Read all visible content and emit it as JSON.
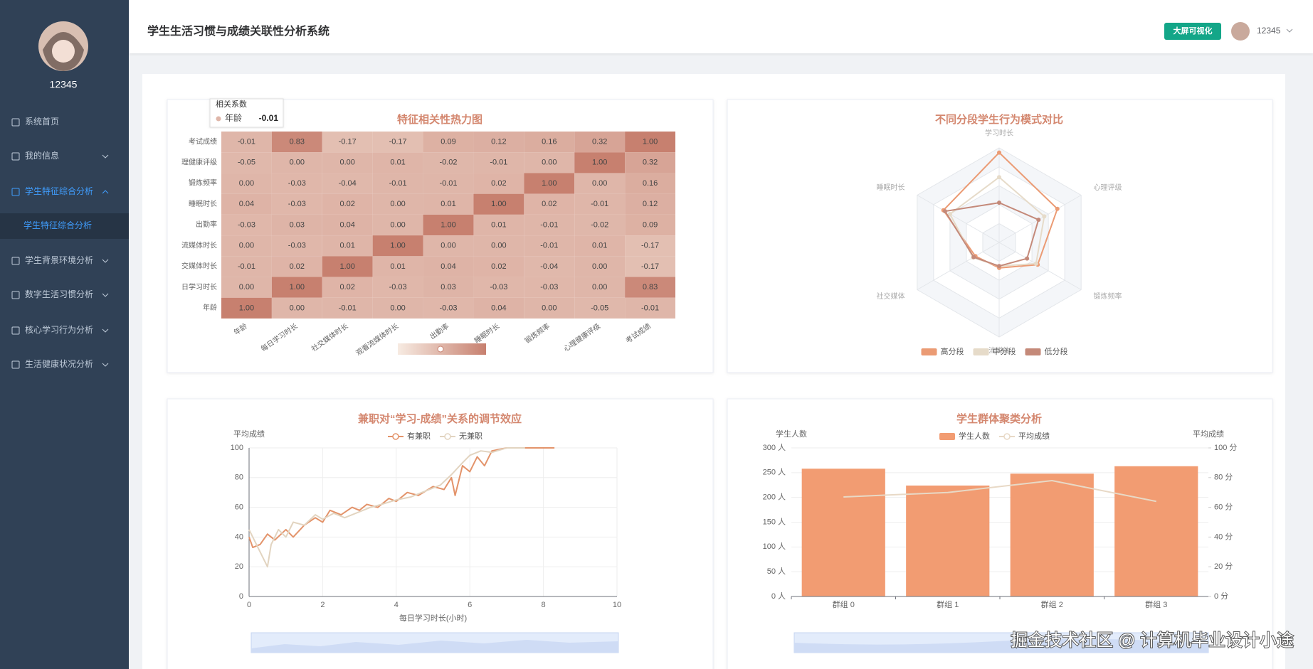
{
  "sidebar": {
    "username": "12345",
    "menu": [
      "系统首页",
      "我的信息",
      "学生特征综合分析",
      "学生背景环境分析",
      "数字生活习惯分析",
      "核心学习行为分析",
      "生活健康状况分析"
    ],
    "submenu": "学生特征综合分析"
  },
  "header": {
    "title": "学生生活习惯与成绩关联性分析系统",
    "button": "大屏可视化",
    "username": "12345"
  },
  "chart_data": [
    {
      "type": "heatmap",
      "title": "特征相关性热力图",
      "x_categories": [
        "年龄",
        "每日学习时长",
        "社交媒体时长",
        "观看流媒体时长",
        "出勤率",
        "睡眠时长",
        "锻炼频率",
        "心理健康评级",
        "考试成绩"
      ],
      "y_categories": [
        "考试成绩",
        "理健康评级",
        "锻炼频率",
        "睡眠时长",
        "出勤率",
        "流媒体时长",
        "交媒体时长",
        "日学习时长",
        "年龄"
      ],
      "values": [
        [
          -0.01,
          0.83,
          -0.17,
          -0.17,
          0.09,
          0.12,
          0.16,
          0.32,
          1
        ],
        [
          -0.05,
          0,
          0,
          0.01,
          -0.02,
          -0.01,
          0,
          1,
          0.32
        ],
        [
          0,
          -0.03,
          -0.04,
          -0.01,
          -0.01,
          0.02,
          1,
          0,
          0.16
        ],
        [
          0.04,
          -0.03,
          0.02,
          0,
          0.01,
          1,
          0.02,
          -0.01,
          0.12
        ],
        [
          -0.03,
          0.03,
          0.04,
          0,
          1,
          0.01,
          -0.01,
          -0.02,
          0.09
        ],
        [
          0,
          -0.03,
          0.01,
          1,
          0,
          0,
          -0.01,
          0.01,
          -0.17
        ],
        [
          -0.01,
          0.02,
          1,
          0.01,
          0.04,
          0.02,
          -0.04,
          0,
          -0.17
        ],
        [
          0,
          1,
          0.02,
          -0.03,
          0.03,
          -0.03,
          -0.03,
          0,
          0.83
        ],
        [
          1,
          0,
          -0.01,
          0,
          -0.03,
          0.04,
          0,
          -0.05,
          -0.01
        ]
      ],
      "value_labels": [
        [
          "-0.01",
          "0.83",
          "-0.17",
          "-0.17",
          "0.09",
          "0.12",
          "0.16",
          "0.32",
          "1.00"
        ],
        [
          "-0.05",
          "0.00",
          "0.00",
          "0.01",
          "-0.02",
          "-0.01",
          "0.00",
          "1.00",
          "0.32"
        ],
        [
          "0.00",
          "-0.03",
          "-0.04",
          "-0.01",
          "-0.01",
          "0.02",
          "1.00",
          "0.00",
          "0.16"
        ],
        [
          "0.04",
          "-0.03",
          "0.02",
          "0.00",
          "0.01",
          "1.00",
          "0.02",
          "-0.01",
          "0.12"
        ],
        [
          "-0.03",
          "0.03",
          "0.04",
          "0.00",
          "1.00",
          "0.01",
          "-0.01",
          "-0.02",
          "0.09"
        ],
        [
          "0.00",
          "-0.03",
          "0.01",
          "1.00",
          "0.00",
          "0.00",
          "-0.01",
          "0.01",
          "-0.17"
        ],
        [
          "-0.01",
          "0.02",
          "1.00",
          "0.01",
          "0.04",
          "0.02",
          "-0.04",
          "0.00",
          "-0.17"
        ],
        [
          "0.00",
          "1.00",
          "0.02",
          "-0.03",
          "0.03",
          "-0.03",
          "-0.03",
          "0.00",
          "0.83"
        ],
        [
          "1.00",
          "0.00",
          "-0.01",
          "0.00",
          "-0.03",
          "0.04",
          "0.00",
          "-0.05",
          "-0.01"
        ]
      ],
      "visual_range": [
        -1,
        1
      ],
      "colors": [
        "#f7ebe2",
        "#c7806f"
      ],
      "tooltip": {
        "title": "相关系数",
        "name": "年龄",
        "value": -0.01
      }
    },
    {
      "type": "radar",
      "title": "不同分段学生行为模式对比",
      "indicators": [
        "学习时长",
        "心理评级",
        "锻炼频率",
        "流媒体",
        "社交媒体",
        "睡眠时长"
      ],
      "rlim": [
        0,
        100
      ],
      "legend": "bottom",
      "series": [
        {
          "name": "高分段",
          "color": "#eb9b74",
          "values": [
            95,
            71,
            47,
            27,
            29,
            68
          ]
        },
        {
          "name": "中分段",
          "color": "#e6dbc9",
          "values": [
            69,
            55,
            45,
            25,
            32,
            60
          ]
        },
        {
          "name": "低分段",
          "color": "#c48979",
          "values": [
            42,
            48,
            34,
            25,
            31,
            66
          ]
        }
      ]
    },
    {
      "type": "line",
      "title": "兼职对“学习-成绩”关系的调节效应",
      "y_label": "平均成绩",
      "x_label": "每日学习时长(小时)",
      "xlim": [
        0,
        10
      ],
      "xticks": [
        0,
        2,
        4,
        6,
        8,
        10
      ],
      "ylim": [
        0,
        100
      ],
      "yticks": [
        0,
        20,
        40,
        60,
        80,
        100
      ],
      "grid": true,
      "legend": "top",
      "series": [
        {
          "name": "有兼职",
          "color": "#e3936a",
          "x": [
            0,
            0.1,
            0.3,
            0.5,
            0.7,
            1,
            1.2,
            1.5,
            1.8,
            2,
            2.2,
            2.5,
            2.8,
            3,
            3.2,
            3.5,
            3.8,
            4,
            4.3,
            4.6,
            5,
            5.3,
            5.5,
            5.6,
            5.8,
            6,
            6.2,
            6.4,
            6.6,
            7,
            8,
            8.3
          ],
          "values": [
            40,
            33,
            35,
            42,
            38,
            45,
            40,
            48,
            53,
            50,
            58,
            55,
            60,
            58,
            62,
            60,
            66,
            64,
            70,
            68,
            74,
            72,
            80,
            68,
            88,
            84,
            94,
            88,
            98,
            100,
            100,
            100
          ]
        },
        {
          "name": "无兼职",
          "color": "#e2d4c0",
          "x": [
            0,
            0.1,
            0.3,
            0.5,
            0.6,
            0.8,
            1,
            1.2,
            1.5,
            1.8,
            2,
            2.3,
            2.6,
            3,
            3.3,
            3.6,
            4,
            4.4,
            4.8,
            5.2,
            5.5,
            5.8,
            6,
            6.3,
            6.6,
            7,
            7.5
          ],
          "values": [
            45,
            40,
            30,
            20,
            35,
            45,
            40,
            50,
            48,
            55,
            52,
            56,
            53,
            57,
            60,
            62,
            65,
            67,
            71,
            75,
            82,
            90,
            95,
            98,
            97,
            100,
            100
          ]
        }
      ]
    },
    {
      "type": "bar",
      "title": "学生群体聚类分析",
      "y_label": "学生人数",
      "y2_label": "平均成绩",
      "categories": [
        "群组 0",
        "群组 1",
        "群组 2",
        "群组 3"
      ],
      "ylim": [
        0,
        300
      ],
      "yticks": [
        {
          "value": 0,
          "label": "0 人"
        },
        {
          "value": 50,
          "label": "50 人"
        },
        {
          "value": 100,
          "label": "100 人"
        },
        {
          "value": 150,
          "label": "150 人"
        },
        {
          "value": 200,
          "label": "200 人"
        },
        {
          "value": 250,
          "label": "250 人"
        },
        {
          "value": 300,
          "label": "300 人"
        }
      ],
      "y2lim": [
        0,
        100
      ],
      "y2ticks": [
        {
          "value": 0,
          "label": "0 分"
        },
        {
          "value": 20,
          "label": "20 分"
        },
        {
          "value": 40,
          "label": "40 分"
        },
        {
          "value": 60,
          "label": "60 分"
        },
        {
          "value": 80,
          "label": "80 分"
        },
        {
          "value": 100,
          "label": "100 分"
        }
      ],
      "grid": true,
      "legend": "top",
      "series": [
        {
          "name": "学生人数",
          "type": "bar",
          "color": "#f29c72",
          "values": [
            258,
            224,
            248,
            263
          ]
        },
        {
          "name": "平均成绩",
          "type": "line",
          "axis": "y2",
          "color": "#e8d9c6",
          "values": [
            67,
            70,
            78,
            64
          ]
        }
      ]
    }
  ],
  "watermark": "掘金技术社区 @ 计算机毕业设计小途"
}
